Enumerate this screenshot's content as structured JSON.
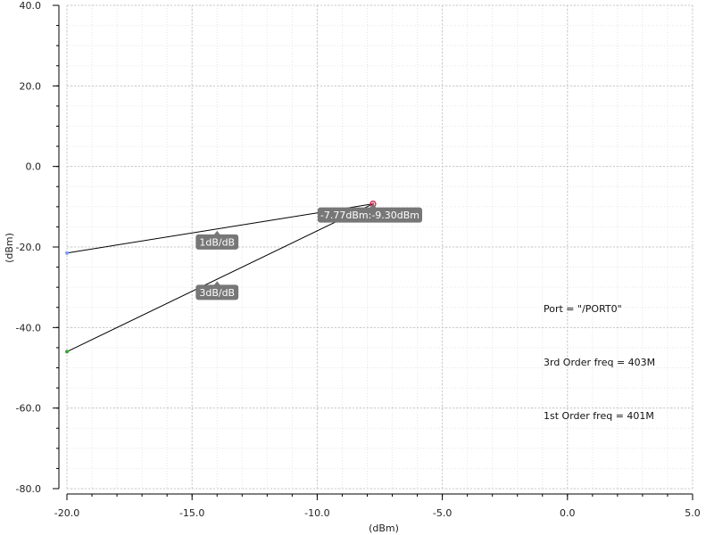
{
  "chart_data": {
    "type": "line",
    "xlabel": "(dBm)",
    "ylabel": "(dBm)",
    "xlim": [
      -20,
      5
    ],
    "ylim": [
      -80,
      40
    ],
    "x_ticks": [
      -20,
      -15,
      -10,
      -5,
      0,
      5
    ],
    "x_tick_labels": [
      "-20.0",
      "-15.0",
      "-10.0",
      "-5.0",
      "0.0",
      "5.0"
    ],
    "y_ticks": [
      40,
      20,
      0,
      -20,
      -40,
      -60,
      -80
    ],
    "y_tick_labels": [
      "40.0",
      "20.0",
      "0.0",
      "-20.0",
      "-40.0",
      "-60.0",
      "-80.0"
    ],
    "grid": true,
    "series": [
      {
        "x": [
          -20,
          -7.77
        ],
        "y": [
          -21.5,
          -9.3
        ],
        "color": "#000000",
        "start_marker_color": "#7a9cff"
      },
      {
        "x": [
          -20,
          -7.77
        ],
        "y": [
          -46.0,
          -9.3
        ],
        "color": "#000000",
        "start_marker_color": "#33aa33"
      }
    ],
    "intercept": {
      "x": -7.77,
      "y": -9.3,
      "label": "-7.77dBm:-9.30dBm",
      "color": "#cc3355"
    },
    "slope_labels": [
      {
        "x": -14,
        "y": -16.0,
        "label": "1dB/dB"
      },
      {
        "x": -14,
        "y": -28.5,
        "label": "3dB/dB"
      }
    ],
    "annotations": [
      "Port = \"/PORT0\"",
      "3rd Order freq = 403M",
      "1st Order freq = 401M"
    ]
  }
}
